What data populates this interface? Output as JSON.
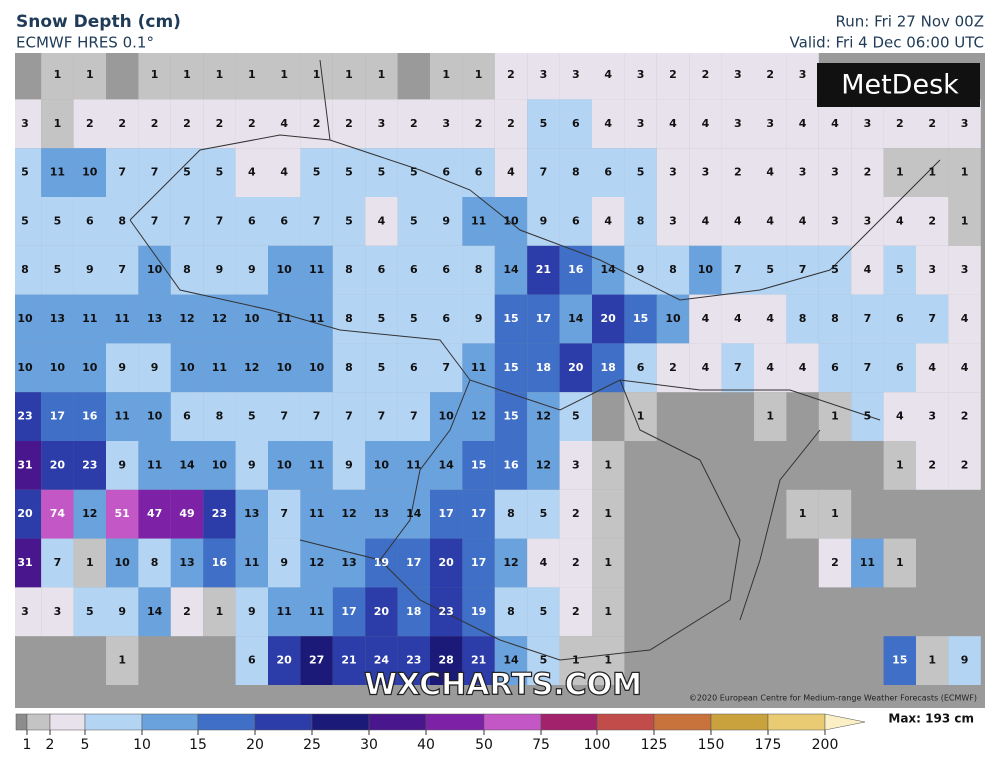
{
  "header": {
    "title": "Snow Depth (cm)",
    "model": "ECMWF HRES 0.1°",
    "run": "Run: Fri 27 Nov 00Z",
    "valid": "Valid: Fri 4 Dec 06:00 UTC"
  },
  "logo": "MetDesk",
  "watermark": "WXCHARTS.COM",
  "copyright": "©2020 European Centre for Medium-range Weather Forecasts (ECMWF)",
  "grid": [
    [
      null,
      1,
      1,
      null,
      1,
      1,
      1,
      1,
      1,
      1,
      1,
      1,
      null,
      1,
      1,
      2,
      3,
      3,
      4,
      3,
      2,
      2,
      3,
      2,
      3,
      null,
      null,
      null,
      null,
      null
    ],
    [
      3,
      1,
      2,
      2,
      2,
      2,
      2,
      2,
      4,
      2,
      2,
      3,
      2,
      3,
      2,
      2,
      5,
      6,
      4,
      3,
      4,
      4,
      3,
      3,
      4,
      4,
      3,
      2,
      2,
      3
    ],
    [
      5,
      11,
      10,
      7,
      7,
      5,
      5,
      4,
      4,
      5,
      5,
      5,
      5,
      6,
      6,
      4,
      7,
      8,
      6,
      5,
      3,
      3,
      2,
      4,
      3,
      3,
      2,
      1,
      1,
      1
    ],
    [
      5,
      5,
      6,
      8,
      7,
      7,
      7,
      6,
      6,
      7,
      5,
      4,
      5,
      9,
      11,
      10,
      9,
      6,
      4,
      8,
      3,
      4,
      4,
      4,
      4,
      3,
      3,
      4,
      2,
      1
    ],
    [
      8,
      5,
      9,
      7,
      10,
      8,
      9,
      9,
      10,
      11,
      8,
      6,
      6,
      6,
      8,
      14,
      21,
      16,
      14,
      9,
      8,
      10,
      7,
      5,
      7,
      5,
      4,
      5,
      3,
      3
    ],
    [
      10,
      13,
      11,
      11,
      13,
      12,
      12,
      10,
      11,
      11,
      8,
      5,
      5,
      6,
      9,
      15,
      17,
      14,
      20,
      15,
      10,
      4,
      4,
      4,
      8,
      8,
      7,
      6,
      7,
      4
    ],
    [
      10,
      10,
      10,
      9,
      9,
      10,
      11,
      12,
      10,
      10,
      8,
      5,
      6,
      7,
      11,
      15,
      18,
      20,
      18,
      6,
      2,
      4,
      7,
      4,
      4,
      6,
      7,
      6,
      4,
      4
    ],
    [
      23,
      17,
      16,
      11,
      10,
      6,
      8,
      5,
      7,
      7,
      7,
      7,
      7,
      10,
      12,
      15,
      12,
      5,
      null,
      1,
      null,
      null,
      null,
      1,
      null,
      1,
      5,
      4,
      3,
      2
    ],
    [
      31,
      20,
      23,
      9,
      11,
      14,
      10,
      9,
      10,
      11,
      9,
      10,
      11,
      14,
      15,
      16,
      12,
      3,
      1,
      null,
      null,
      null,
      null,
      null,
      null,
      null,
      null,
      1,
      2,
      2
    ],
    [
      20,
      74,
      12,
      51,
      47,
      49,
      23,
      13,
      7,
      11,
      12,
      13,
      14,
      17,
      17,
      8,
      5,
      2,
      1,
      null,
      null,
      null,
      null,
      null,
      1,
      1,
      null,
      null,
      null,
      null
    ],
    [
      31,
      7,
      1,
      10,
      8,
      13,
      16,
      11,
      9,
      12,
      13,
      19,
      17,
      20,
      17,
      12,
      4,
      2,
      1,
      null,
      null,
      null,
      null,
      null,
      null,
      2,
      11,
      1,
      null,
      null
    ],
    [
      3,
      3,
      5,
      9,
      14,
      2,
      1,
      9,
      11,
      11,
      17,
      20,
      18,
      23,
      19,
      8,
      5,
      2,
      1,
      null,
      null,
      null,
      null,
      null,
      null,
      null,
      null,
      null,
      null,
      null
    ],
    [
      null,
      null,
      null,
      1,
      null,
      null,
      null,
      6,
      20,
      27,
      21,
      24,
      23,
      28,
      21,
      14,
      5,
      1,
      1,
      null,
      null,
      null,
      null,
      null,
      null,
      null,
      null,
      15,
      1,
      9
    ]
  ],
  "legend": {
    "levels": [
      1,
      2,
      5,
      10,
      15,
      20,
      25,
      30,
      40,
      50,
      75,
      100,
      125,
      150,
      175,
      200
    ],
    "colors": [
      "#8c8c8c",
      "#c4c4c4",
      "#e8e2ec",
      "#b4d4f4",
      "#6aa2de",
      "#3f6fc6",
      "#2c3ca8",
      "#1b1a78",
      "#4a168e",
      "#7d22a6",
      "#c457c6",
      "#a3226c",
      "#c24c4a",
      "#c9733c",
      "#c9a23e",
      "#e8cb72",
      "#fbefc6"
    ],
    "max": "Max: 193 cm"
  }
}
